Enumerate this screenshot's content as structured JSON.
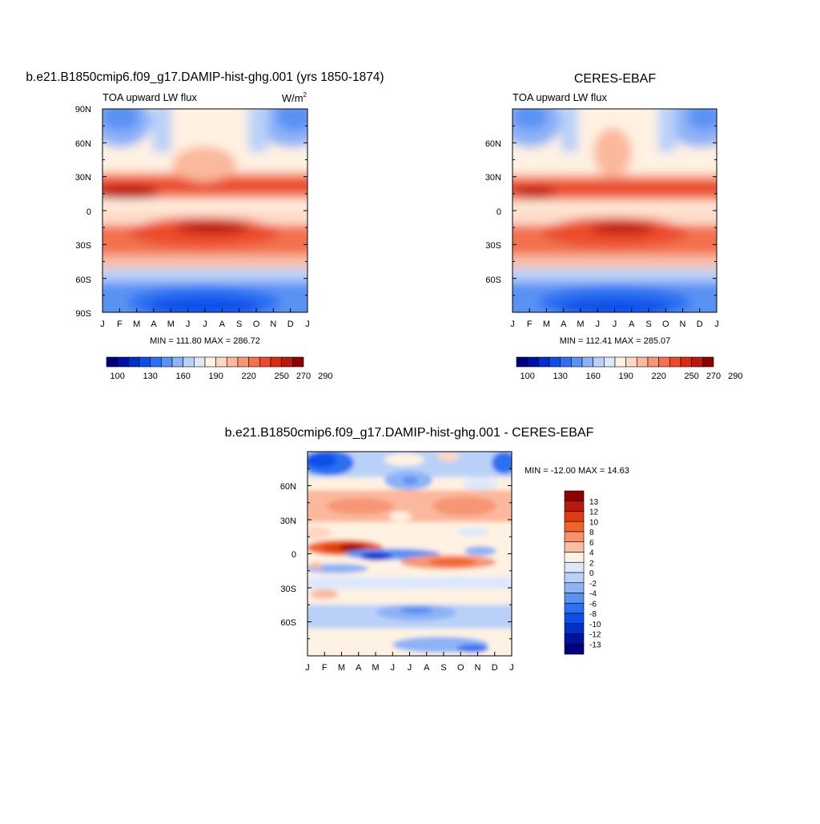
{
  "panels": {
    "model": {
      "title": "b.e21.B1850cmip6.f09_g17.DAMIP-hist-ghg.001 (yrs 1850-1874)",
      "left_label": "TOA upward LW flux",
      "units_label": "W/m",
      "units_sup": "2",
      "minmax": "MIN = 111.80 MAX = 286.72"
    },
    "obs": {
      "title": "CERES-EBAF",
      "left_label": "TOA upward LW flux",
      "minmax": "MIN = 112.41 MAX = 285.07"
    },
    "diff": {
      "title": "b.e21.B1850cmip6.f09_g17.DAMIP-hist-ghg.001 - CERES-EBAF",
      "minmax": "MIN = -12.00 MAX =  14.63"
    }
  },
  "chart_data": [
    {
      "type": "heatmap",
      "title": "b.e21.B1850cmip6.f09_g17.DAMIP-hist-ghg.001 (yrs 1850-1874)",
      "subtitle": "TOA upward LW flux",
      "units": "W/m2",
      "x_ticks": [
        "J",
        "F",
        "M",
        "A",
        "M",
        "J",
        "J",
        "A",
        "S",
        "O",
        "N",
        "D",
        "J"
      ],
      "y_ticks": [
        "90N",
        "60N",
        "30N",
        "0",
        "30S",
        "60S",
        "90S"
      ],
      "ylim": [
        -90,
        90
      ],
      "min": 111.8,
      "max": 286.72,
      "colorbar": {
        "levels": [
          100,
          110,
          120,
          130,
          140,
          150,
          160,
          170,
          180,
          190,
          200,
          210,
          220,
          230,
          240,
          250,
          260,
          270,
          280,
          290
        ],
        "labels": [
          "100",
          "130",
          "160",
          "190",
          "220",
          "250",
          "270",
          "290"
        ]
      }
    },
    {
      "type": "heatmap",
      "title": "CERES-EBAF",
      "subtitle": "TOA upward LW flux",
      "x_ticks": [
        "J",
        "F",
        "M",
        "A",
        "M",
        "J",
        "J",
        "A",
        "S",
        "O",
        "N",
        "D",
        "J"
      ],
      "y_ticks": [
        "60N",
        "30N",
        "0",
        "30S",
        "60S"
      ],
      "ylim": [
        -90,
        90
      ],
      "min": 112.41,
      "max": 285.07,
      "colorbar": {
        "levels": [
          100,
          110,
          120,
          130,
          140,
          150,
          160,
          170,
          180,
          190,
          200,
          210,
          220,
          230,
          240,
          250,
          260,
          270,
          280,
          290
        ],
        "labels": [
          "100",
          "130",
          "160",
          "190",
          "220",
          "250",
          "270",
          "290"
        ]
      }
    },
    {
      "type": "heatmap",
      "title": "b.e21.B1850cmip6.f09_g17.DAMIP-hist-ghg.001 - CERES-EBAF",
      "x_ticks": [
        "J",
        "F",
        "M",
        "A",
        "M",
        "J",
        "J",
        "A",
        "S",
        "O",
        "N",
        "D",
        "J"
      ],
      "y_ticks": [
        "60N",
        "30N",
        "0",
        "30S",
        "60S"
      ],
      "ylim": [
        -90,
        90
      ],
      "min": -12.0,
      "max": 14.63,
      "colorbar": {
        "labels": [
          "13",
          "12",
          "10",
          "8",
          "6",
          "4",
          "2",
          "0",
          "-2",
          "-4",
          "-6",
          "-8",
          "-10",
          "-12",
          "-13"
        ]
      }
    }
  ],
  "colors": {
    "abs_scale": [
      "#00007e",
      "#0010a6",
      "#0030cc",
      "#0a50e8",
      "#2c6ff2",
      "#5a92f4",
      "#8db2f6",
      "#b9d1f8",
      "#dde9fb",
      "#fff2e2",
      "#fdd7c2",
      "#fbb89c",
      "#f79676",
      "#f27250",
      "#eb4b2a",
      "#d92b10",
      "#b9180a",
      "#900000"
    ],
    "diff_scale": [
      "#900000",
      "#b91a0c",
      "#df3a10",
      "#f26426",
      "#f7916b",
      "#fbbf9f",
      "#fff2e2",
      "#dde9fb",
      "#b9d1f8",
      "#8db2f6",
      "#5a92f4",
      "#2c6ff2",
      "#0a50e8",
      "#0030cc",
      "#00139f",
      "#00007e"
    ]
  }
}
